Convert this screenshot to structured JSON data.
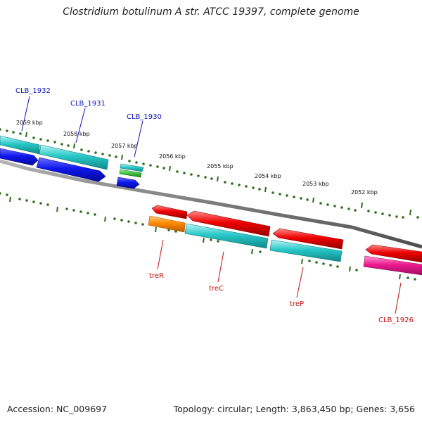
{
  "header": {
    "title": "Clostridium botulinum A str. ATCC 19397, complete genome"
  },
  "footer": {
    "accession": "Accession: NC_009697",
    "summary": "Topology: circular; Length: 3,863,450 bp; Genes: 3,656"
  },
  "colors": {
    "backbone": "#7a7a7a",
    "tick_major": "#2d6e1a",
    "tick_minor": "#2d6e1a",
    "blue_label": "#0b16b8",
    "red_label": "#c01010",
    "cds_blue": "#0a10e0",
    "cds_cyan": "#22c8c8",
    "cds_green": "#3cc43c",
    "cds_red": "#ee0000",
    "cds_orange": "#ff8a00",
    "cds_pink": "#ee1a90"
  },
  "tick_labels": [
    "2059 kbp",
    "2058 kbp",
    "2057 kbp",
    "2056 kbp",
    "2055 kbp",
    "2054 kbp",
    "2053 kbp",
    "2052 kbp"
  ],
  "gene_labels_top": [
    "CLB_1932",
    "CLB_1931",
    "CLB_1930"
  ],
  "gene_labels_bottom": [
    "treR",
    "treC",
    "treP",
    "CLB_1926"
  ]
}
